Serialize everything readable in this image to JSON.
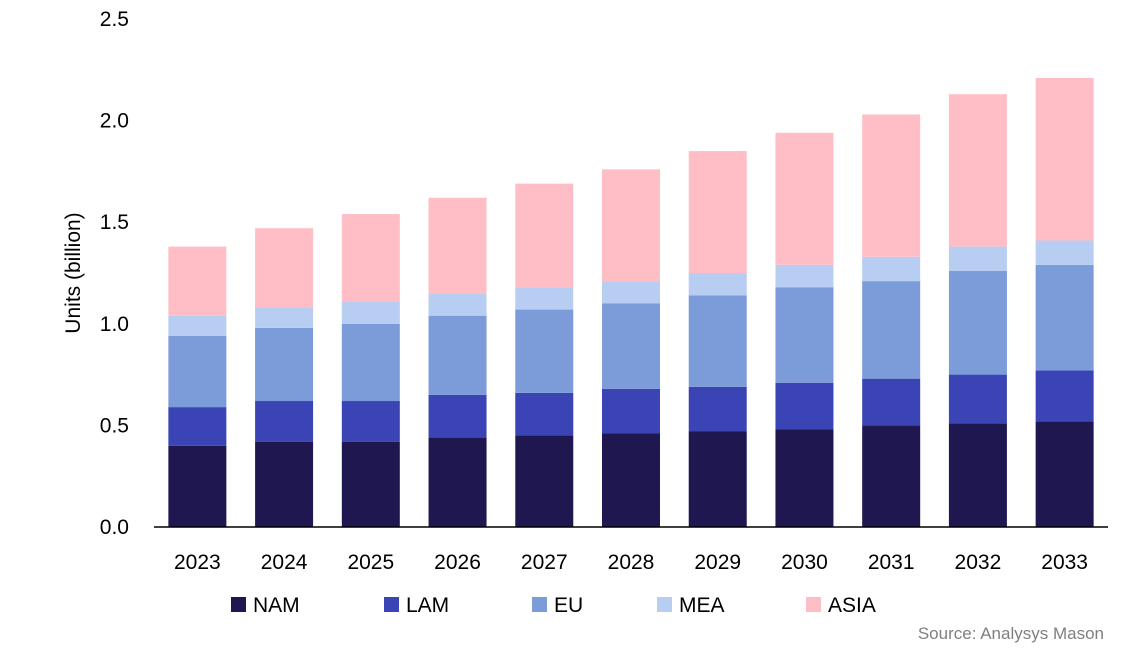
{
  "chart_data": {
    "type": "bar",
    "stacked": true,
    "ylabel": "Units (billion)",
    "xlabel": "",
    "ylim": [
      0,
      2.5
    ],
    "yticks": [
      "0.0",
      "0.5",
      "1.0",
      "1.5",
      "2.0",
      "2.5"
    ],
    "categories": [
      "2023",
      "2024",
      "2025",
      "2026",
      "2027",
      "2028",
      "2029",
      "2030",
      "2031",
      "2032",
      "2033"
    ],
    "series": [
      {
        "name": "NAM",
        "color": "#1f1750",
        "values": [
          0.4,
          0.42,
          0.42,
          0.44,
          0.45,
          0.46,
          0.47,
          0.48,
          0.5,
          0.51,
          0.52
        ]
      },
      {
        "name": "LAM",
        "color": "#3b44b4",
        "values": [
          0.19,
          0.2,
          0.2,
          0.21,
          0.21,
          0.22,
          0.22,
          0.23,
          0.23,
          0.24,
          0.25
        ]
      },
      {
        "name": "EU",
        "color": "#7b9bd9",
        "values": [
          0.35,
          0.36,
          0.38,
          0.39,
          0.41,
          0.42,
          0.45,
          0.47,
          0.48,
          0.51,
          0.52
        ]
      },
      {
        "name": "MEA",
        "color": "#b7cdf2",
        "values": [
          0.1,
          0.1,
          0.11,
          0.11,
          0.11,
          0.11,
          0.11,
          0.11,
          0.12,
          0.12,
          0.12
        ]
      },
      {
        "name": "ASIA",
        "color": "#ffbec6",
        "values": [
          0.34,
          0.39,
          0.43,
          0.47,
          0.51,
          0.55,
          0.6,
          0.65,
          0.7,
          0.75,
          0.8
        ]
      }
    ],
    "legend_position": "bottom",
    "grid": false
  },
  "source": "Source: Analysys Mason"
}
